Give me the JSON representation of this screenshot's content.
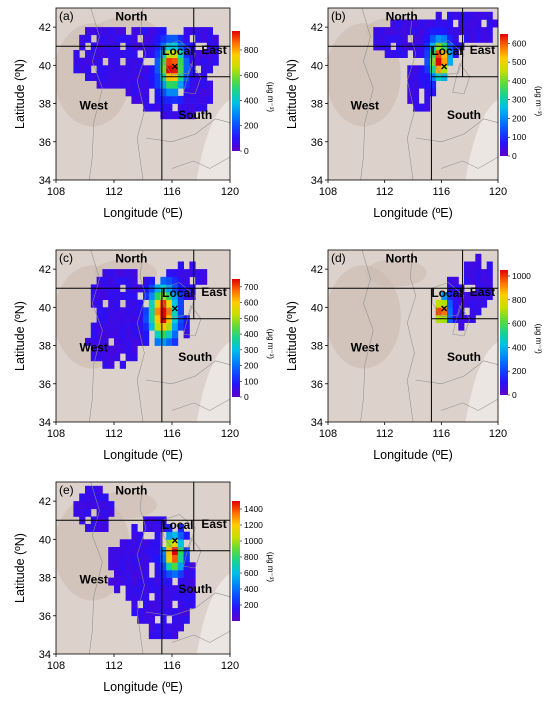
{
  "chart_data": [
    {
      "type": "heatmap",
      "panel_label": "(a)",
      "xlabel": "Longitude (ºE)",
      "ylabel": "Latitude (ºN)",
      "xlim": [
        108,
        120
      ],
      "ylim": [
        34,
        43
      ],
      "x_ticks": [
        "108",
        "112",
        "116",
        "120"
      ],
      "y_ticks": [
        "34",
        "36",
        "38",
        "40",
        "42"
      ],
      "regions": [
        "North",
        "East",
        "Local",
        "West",
        "South"
      ],
      "colorbar": {
        "unit": "(μg m⁻³)",
        "range": [
          0,
          950
        ],
        "ticks": [
          "0",
          "200",
          "400",
          "600",
          "800"
        ]
      },
      "source_center": {
        "lon": 116.2,
        "lat": 40.0,
        "peak": 950
      }
    },
    {
      "type": "heatmap",
      "panel_label": "(b)",
      "xlabel": "Longitude (ºE)",
      "ylabel": "Latitude (ºN)",
      "xlim": [
        108,
        120
      ],
      "ylim": [
        34,
        43
      ],
      "x_ticks": [
        "108",
        "112",
        "116",
        "120"
      ],
      "y_ticks": [
        "34",
        "36",
        "38",
        "40",
        "42"
      ],
      "regions": [
        "North",
        "East",
        "Local",
        "West",
        "South"
      ],
      "colorbar": {
        "unit": "(μg m⁻³)",
        "range": [
          0,
          650
        ],
        "ticks": [
          "0",
          "100",
          "200",
          "300",
          "400",
          "500",
          "600"
        ]
      },
      "source_center": {
        "lon": 116.2,
        "lat": 40.0,
        "peak": 650
      }
    },
    {
      "type": "heatmap",
      "panel_label": "(c)",
      "xlabel": "Longitude (ºE)",
      "ylabel": "Latitude (ºN)",
      "xlim": [
        108,
        120
      ],
      "ylim": [
        34,
        43
      ],
      "x_ticks": [
        "108",
        "112",
        "116",
        "120"
      ],
      "y_ticks": [
        "34",
        "36",
        "38",
        "40",
        "42"
      ],
      "regions": [
        "North",
        "East",
        "Local",
        "West",
        "South"
      ],
      "colorbar": {
        "unit": "(μg m⁻³)",
        "range": [
          0,
          750
        ],
        "ticks": [
          "0",
          "100",
          "200",
          "300",
          "400",
          "500",
          "600",
          "700"
        ]
      },
      "source_center": {
        "lon": 116.2,
        "lat": 40.0,
        "peak": 750
      }
    },
    {
      "type": "heatmap",
      "panel_label": "(d)",
      "xlabel": "Longitude (ºE)",
      "ylabel": "Latitude (ºN)",
      "xlim": [
        108,
        120
      ],
      "ylim": [
        34,
        43
      ],
      "x_ticks": [
        "108",
        "112",
        "116",
        "120"
      ],
      "y_ticks": [
        "34",
        "36",
        "38",
        "40",
        "42"
      ],
      "regions": [
        "North",
        "East",
        "Local",
        "West",
        "South"
      ],
      "colorbar": {
        "unit": "(μg m⁻³)",
        "range": [
          0,
          1050
        ],
        "ticks": [
          "0",
          "200",
          "400",
          "600",
          "800",
          "1000"
        ]
      },
      "source_center": {
        "lon": 116.2,
        "lat": 40.0,
        "peak": 1050
      }
    },
    {
      "type": "heatmap",
      "panel_label": "(e)",
      "xlabel": "Longitude (ºE)",
      "ylabel": "Latitude (ºN)",
      "xlim": [
        108,
        120
      ],
      "ylim": [
        34,
        43
      ],
      "x_ticks": [
        "108",
        "112",
        "116",
        "120"
      ],
      "y_ticks": [
        "34",
        "36",
        "38",
        "40",
        "42"
      ],
      "regions": [
        "North",
        "East",
        "Local",
        "West",
        "South"
      ],
      "colorbar": {
        "unit": "(μg m⁻³)",
        "range": [
          0,
          1500
        ],
        "ticks": [
          "200",
          "400",
          "600",
          "800",
          "1000",
          "1200",
          "1400"
        ]
      },
      "source_center": {
        "lon": 116.2,
        "lat": 40.0,
        "peak": 1500
      }
    }
  ],
  "region_boundaries": {
    "north_lat": 41,
    "west_lon": 115.3,
    "east_lon": 117.5,
    "south_lat": 39.4
  },
  "colors": {
    "terrain": "#ddd2cb",
    "terrain_dark": "#c9b8ae",
    "line": "#000000"
  }
}
